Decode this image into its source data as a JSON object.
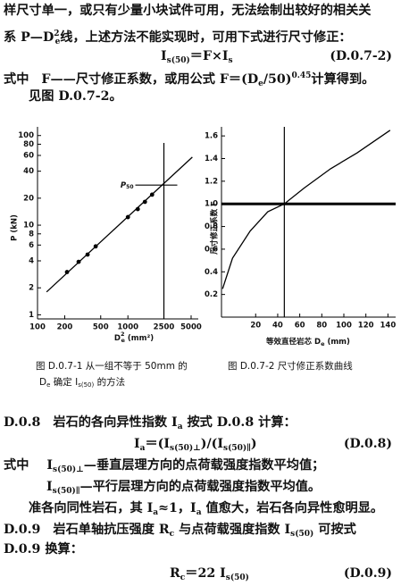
{
  "text": {
    "l1": [
      "样尺寸单一，或只有少量小块试件可用，无法绘制出较好的相关关"
    ],
    "l2": [
      "系 P—D",
      "2",
      "e",
      "线，上述方法不能实现时，可用下式进行尺寸修正："
    ],
    "eq1": [
      "I",
      "s(50)",
      "＝F×I",
      "s"
    ],
    "eq1_no": "(D.0.7-2)",
    "l3": [
      "式中",
      "F——尺寸修正系数，或用公式 F＝(D",
      "e",
      "/50)",
      "0.45",
      "计算得到。"
    ],
    "l4": [
      "见图 D.0.7-2。"
    ]
  },
  "chart_data": [
    {
      "type": "scatter",
      "xscale": "log",
      "yscale": "log",
      "xlabel": [
        "D",
        "2",
        "e",
        " (mm²)"
      ],
      "ylabel": "P (kN)",
      "xlim": [
        100,
        6000
      ],
      "ylim": [
        0.9,
        125
      ],
      "xticks": [
        100,
        200,
        500,
        1000,
        2500,
        5000
      ],
      "yticks": [
        1,
        2,
        4,
        6,
        8,
        10,
        20,
        40,
        60,
        80,
        100
      ],
      "color": "#000000",
      "x": [
        212,
        285,
        358,
        440,
        1000,
        1285,
        1542,
        1850
      ],
      "values": [
        3.0,
        3.9,
        4.7,
        5.8,
        12.3,
        15.1,
        18.2,
        21.9
      ],
      "fit": {
        "x": [
          126,
          5160
        ],
        "values": [
          1.8,
          57.5
        ]
      },
      "reference": {
        "x": 2500,
        "y": 28,
        "label": [
          "P",
          "50"
        ]
      }
    },
    {
      "type": "line",
      "xscale": "linear",
      "yscale": "linear",
      "xlabel": [
        "等效直径岩芯 D",
        "e",
        " (mm)"
      ],
      "ylabel": "尺寸修正系数 F",
      "xlim": [
        -11,
        147
      ],
      "ylim": [
        0,
        1.68
      ],
      "xticks": [
        20,
        40,
        60,
        80,
        100,
        120,
        140
      ],
      "yticks": [
        0.2,
        0.4,
        0.6,
        0.8,
        {
          "value": 1,
          "label": "1.0"
        },
        1.2,
        1.4,
        1.6
      ],
      "color": "#000000",
      "x": [
        -10,
        -1,
        15,
        31,
        46,
        64,
        88,
        112,
        142
      ],
      "values": [
        0.25,
        0.52,
        0.76,
        0.93,
        1.0,
        1.14,
        1.31,
        1.45,
        1.65
      ],
      "reference": {
        "x": 46,
        "y": 1
      }
    }
  ],
  "captions": {
    "c1a": [
      "图 D.0.7-1  从一组不等于 50mm 的"
    ],
    "c1b": [
      "D",
      "e",
      " 确定 ",
      "I",
      "s(50)",
      " 的方法"
    ],
    "c2": [
      "图 D.0.7-2  尺寸修正系数曲线"
    ]
  },
  "section": {
    "s1": [
      "D.0.8",
      "岩石的各向异性指数 I",
      "a",
      " 按式 D.0.8 计算："
    ],
    "eq2": [
      "I",
      "a",
      "＝(I",
      "s(50)⊥",
      ")/(I",
      "s(50)∥",
      ")"
    ],
    "eq2_no": "(D.0.8)",
    "s2": [
      "式中",
      "I",
      "s(50)⊥",
      "—垂直层理方向的点荷载强度指数平均值；"
    ],
    "s3": [
      "I",
      "s(50)∥",
      "—平行层理方向的点荷载强度指数平均值。"
    ],
    "s4": [
      "准各向同性岩石，其 I",
      "a",
      "≈1，I",
      "a",
      " 值愈大，岩石各向异性愈明显。"
    ],
    "s5": [
      "D.0.9",
      "岩石单轴抗压强度 R",
      "c",
      " 与点荷载强度指数 I",
      "s(50)",
      " 可按式"
    ],
    "s6": [
      "D.0.9 换算："
    ],
    "eq3": [
      "R",
      "c",
      "＝22 I",
      "s(50)"
    ],
    "eq3_no": "(D.0.9)"
  }
}
